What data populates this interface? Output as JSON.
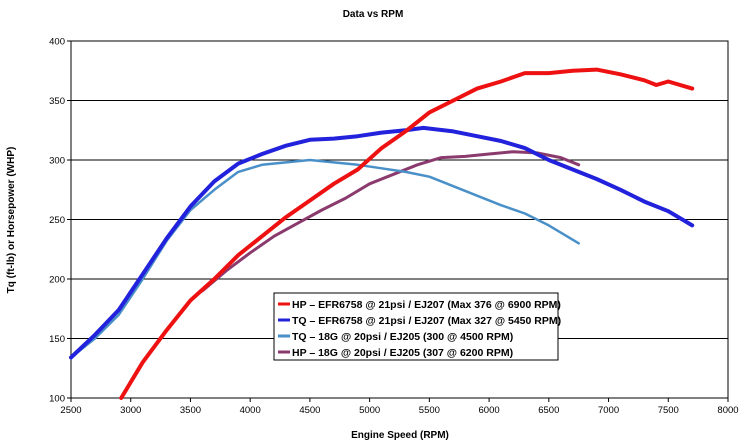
{
  "chart_data": {
    "type": "line",
    "title": "Data vs RPM",
    "xlabel": "Engine Speed (RPM)",
    "ylabel": "Tq (ft-lb) or Horsepower (WHP)",
    "xlim": [
      2500,
      8000
    ],
    "ylim": [
      100,
      400
    ],
    "x_ticks": [
      "2500",
      "3000",
      "3500",
      "4000",
      "4500",
      "5000",
      "5500",
      "6000",
      "6500",
      "7000",
      "7500",
      "8000"
    ],
    "y_ticks": [
      "100",
      "150",
      "200",
      "250",
      "300",
      "350",
      "400"
    ],
    "grid": "horizontal",
    "legend_position": "center",
    "series": [
      {
        "name": "HP – EFR6758 @ 21psi / EJ207 (Max 376 @ 6900 RPM)",
        "color": "#ee1111",
        "points": [
          [
            2920,
            100
          ],
          [
            3100,
            130
          ],
          [
            3300,
            157
          ],
          [
            3500,
            182
          ],
          [
            3700,
            200
          ],
          [
            3900,
            220
          ],
          [
            4100,
            236
          ],
          [
            4300,
            252
          ],
          [
            4500,
            266
          ],
          [
            4700,
            280
          ],
          [
            4900,
            292
          ],
          [
            5100,
            310
          ],
          [
            5300,
            324
          ],
          [
            5500,
            340
          ],
          [
            5700,
            350
          ],
          [
            5900,
            360
          ],
          [
            6100,
            366
          ],
          [
            6300,
            373
          ],
          [
            6500,
            373
          ],
          [
            6700,
            375
          ],
          [
            6900,
            376
          ],
          [
            7100,
            372
          ],
          [
            7300,
            367
          ],
          [
            7400,
            363
          ],
          [
            7500,
            366
          ],
          [
            7700,
            360
          ]
        ]
      },
      {
        "name": "TQ – EFR6758 @ 21psi / EJ207 (Max 327 @ 5450 RPM)",
        "color": "#2222dd",
        "points": [
          [
            2500,
            134
          ],
          [
            2700,
            153
          ],
          [
            2900,
            174
          ],
          [
            3100,
            204
          ],
          [
            3300,
            234
          ],
          [
            3500,
            261
          ],
          [
            3700,
            282
          ],
          [
            3900,
            297
          ],
          [
            4100,
            305
          ],
          [
            4300,
            312
          ],
          [
            4500,
            317
          ],
          [
            4700,
            318
          ],
          [
            4900,
            320
          ],
          [
            5100,
            323
          ],
          [
            5300,
            325
          ],
          [
            5450,
            327
          ],
          [
            5700,
            324
          ],
          [
            5900,
            320
          ],
          [
            6100,
            316
          ],
          [
            6300,
            310
          ],
          [
            6500,
            300
          ],
          [
            6700,
            292
          ],
          [
            6900,
            284
          ],
          [
            7100,
            275
          ],
          [
            7300,
            265
          ],
          [
            7500,
            257
          ],
          [
            7700,
            245
          ]
        ]
      },
      {
        "name": "TQ – 18G @ 20psi / EJ205 (300 @ 4500 RPM)",
        "color": "#4a90c8",
        "points": [
          [
            2500,
            134
          ],
          [
            2700,
            150
          ],
          [
            2900,
            170
          ],
          [
            3100,
            200
          ],
          [
            3300,
            232
          ],
          [
            3500,
            258
          ],
          [
            3700,
            275
          ],
          [
            3900,
            290
          ],
          [
            4100,
            296
          ],
          [
            4300,
            298
          ],
          [
            4500,
            300
          ],
          [
            4700,
            298
          ],
          [
            4900,
            296
          ],
          [
            5100,
            293
          ],
          [
            5300,
            290
          ],
          [
            5500,
            286
          ],
          [
            5700,
            278
          ],
          [
            5900,
            270
          ],
          [
            6100,
            262
          ],
          [
            6300,
            255
          ],
          [
            6500,
            245
          ],
          [
            6750,
            230
          ]
        ]
      },
      {
        "name": "HP – 18G @ 20psi / EJ205 (307 @ 6200 RPM)",
        "color": "#8b3a6e",
        "points": [
          [
            3600,
            190
          ],
          [
            3800,
            207
          ],
          [
            4000,
            222
          ],
          [
            4200,
            236
          ],
          [
            4400,
            247
          ],
          [
            4600,
            258
          ],
          [
            4800,
            268
          ],
          [
            5000,
            280
          ],
          [
            5200,
            288
          ],
          [
            5400,
            296
          ],
          [
            5600,
            302
          ],
          [
            5800,
            303
          ],
          [
            6000,
            305
          ],
          [
            6200,
            307
          ],
          [
            6400,
            306
          ],
          [
            6600,
            302
          ],
          [
            6750,
            296
          ]
        ]
      }
    ]
  }
}
